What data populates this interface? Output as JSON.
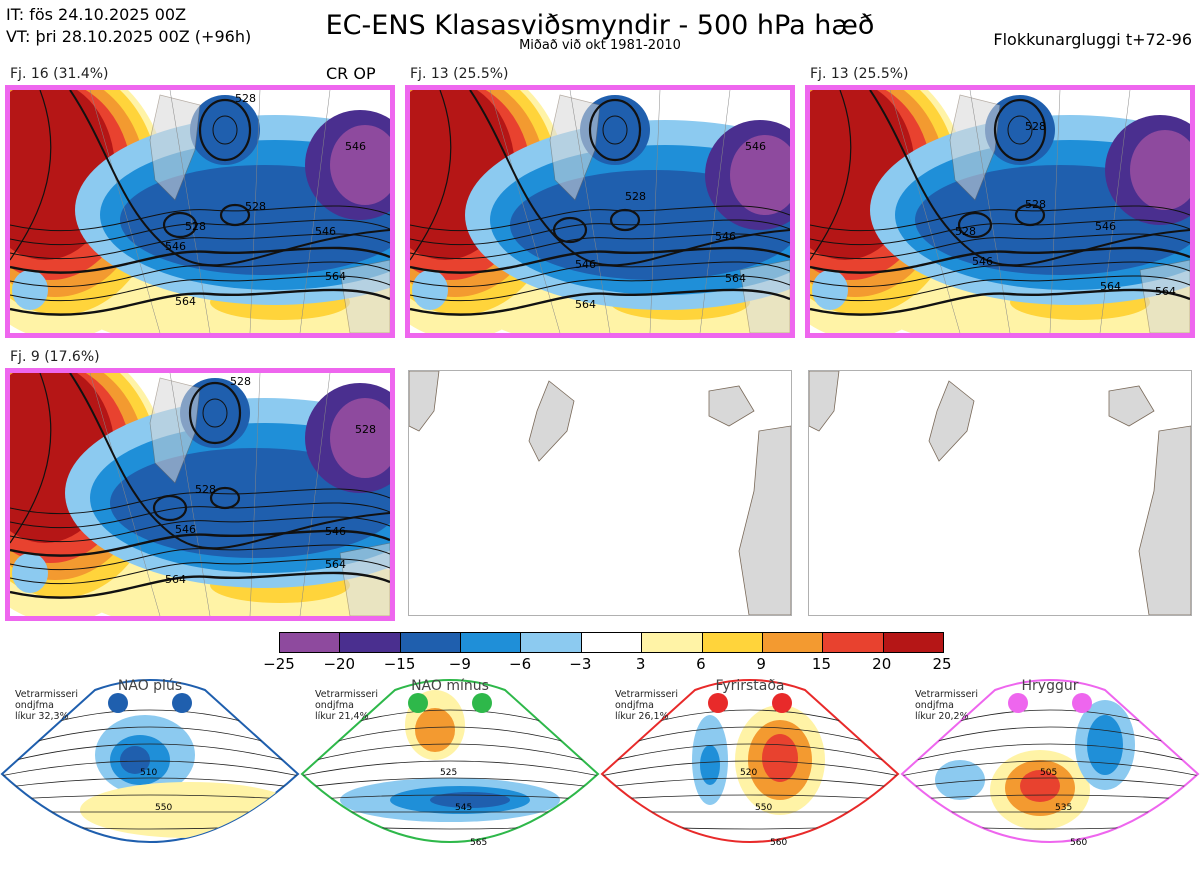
{
  "header": {
    "it": "IT: fös 24.10.2025 00Z",
    "vt": "VT: þri 28.10.2025 00Z  (+96h)",
    "title": "EC-ENS Klasasviðsmyndir - 500 hPa hæð",
    "subtitle": "Miðað við okt 1981-2010",
    "window": "Flokkunargluggi t+72-96"
  },
  "panels": [
    {
      "label": "Fj. 16 (31.4%)",
      "tag": "CR OP",
      "contours": [
        "528",
        "528",
        "528",
        "546",
        "546",
        "546",
        "564",
        "564"
      ]
    },
    {
      "label": "Fj. 13 (25.5%)",
      "contours": [
        "528",
        "546",
        "546",
        "546",
        "564",
        "564"
      ]
    },
    {
      "label": "Fj. 13 (25.5%)",
      "contours": [
        "528",
        "528",
        "528",
        "546",
        "546",
        "564",
        "564"
      ]
    },
    {
      "label": "Fj. 9 (17.6%)",
      "contours": [
        "528",
        "528",
        "528",
        "546",
        "546",
        "564",
        "564"
      ]
    }
  ],
  "colorbar": {
    "ticks": [
      "−25",
      "−20",
      "−15",
      "−9",
      "−6",
      "−3",
      "3",
      "6",
      "9",
      "15",
      "20",
      "25"
    ],
    "colors": [
      "#8e4a9e",
      "#4a2f8f",
      "#1f5fae",
      "#1f8fd8",
      "#8ccaf0",
      "#ffffff",
      "#fff3a6",
      "#ffd43b",
      "#f39a30",
      "#e8422f",
      "#b51616"
    ]
  },
  "regimes": [
    {
      "name": "NAO plús",
      "note1": "Vetrarmisseri",
      "note2": "ondjfma",
      "note3": "líkur 32,3%",
      "color": "#1f5fae",
      "labels": [
        "510",
        "550"
      ]
    },
    {
      "name": "NAO mínus",
      "note1": "Vetrarmisseri",
      "note2": "ondjfma",
      "note3": "líkur 21,4%",
      "color": "#2eb84a",
      "labels": [
        "525",
        "545",
        "565"
      ]
    },
    {
      "name": "Fyrirstaða",
      "note1": "Vetrarmisseri",
      "note2": "ondjfma",
      "note3": "líkur 26,1%",
      "color": "#e82a2a",
      "labels": [
        "520",
        "550",
        "560"
      ]
    },
    {
      "name": "Hryggur",
      "note1": "Vetrarmisseri",
      "note2": "ondjfma",
      "note3": "líkur 20,2%",
      "color": "#ee66ee",
      "labels": [
        "505",
        "535",
        "560"
      ]
    }
  ]
}
